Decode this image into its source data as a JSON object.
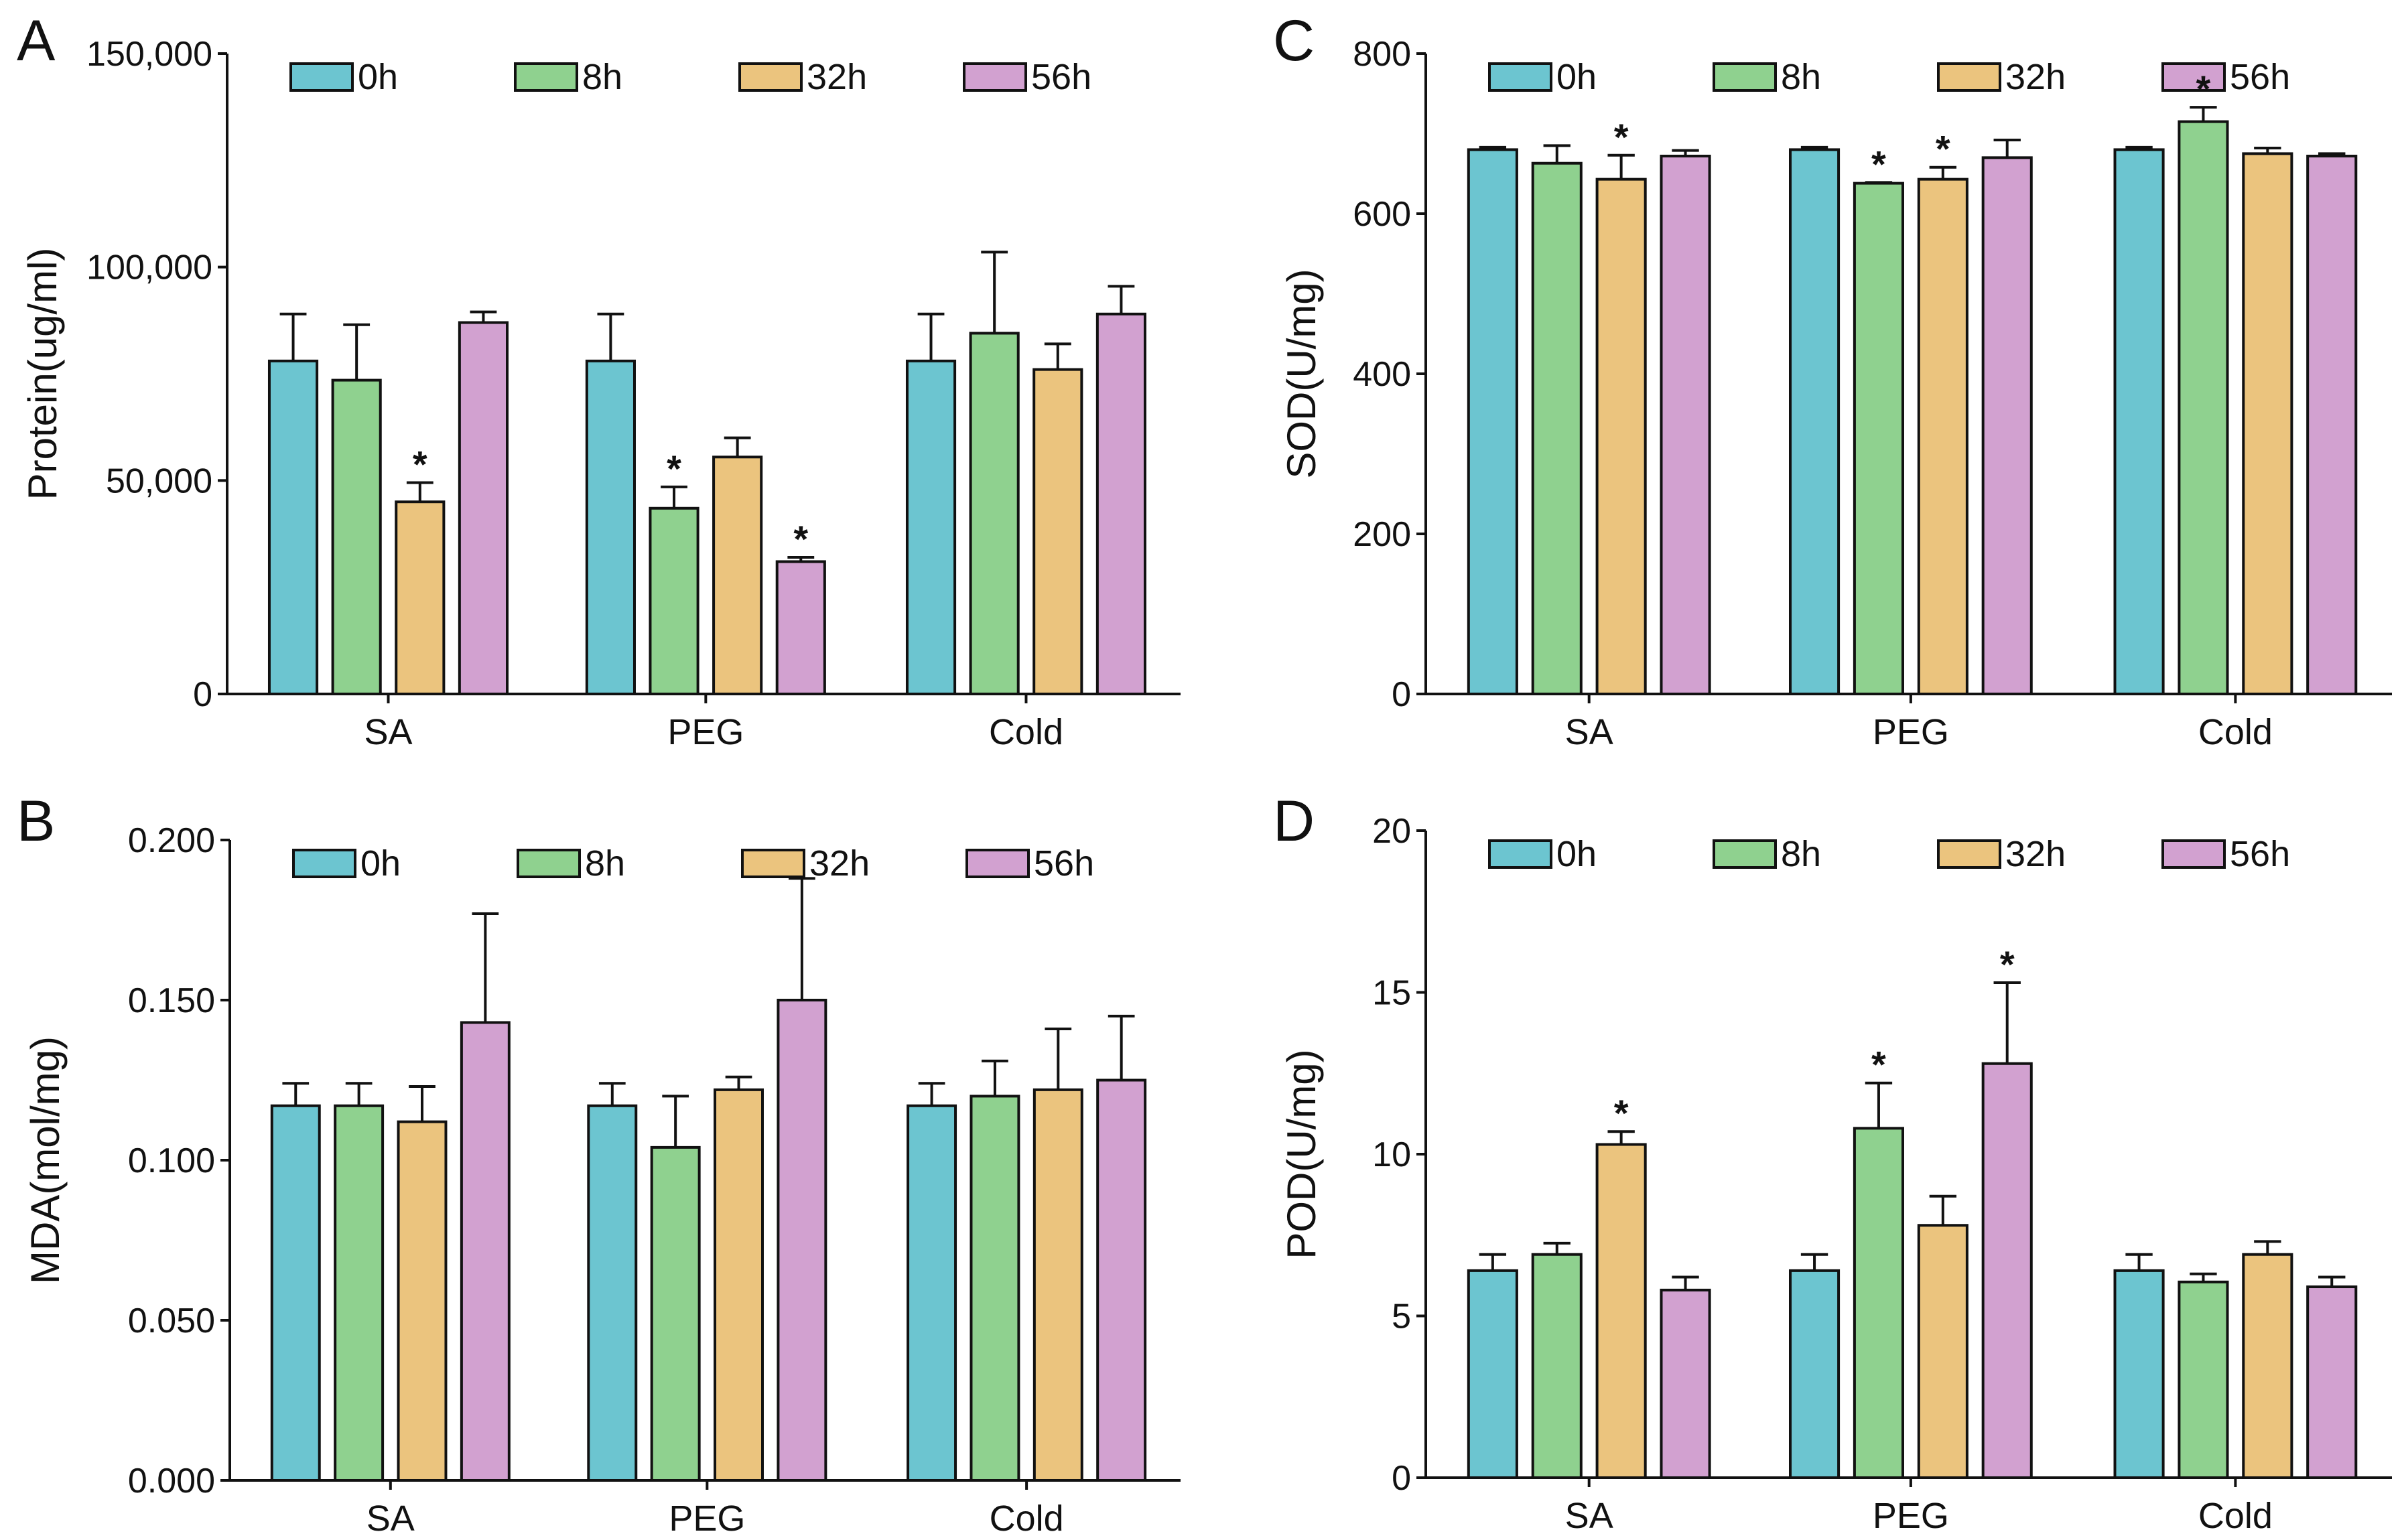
{
  "chart_data": [
    {
      "panel": "A",
      "type": "bar",
      "ylabel": "Protein(ug/ml)",
      "ylim": [
        0,
        150000
      ],
      "yticks": [
        0,
        50000,
        100000,
        150000
      ],
      "ytick_labels": [
        "0",
        "50,000",
        "100,000",
        "150,000"
      ],
      "categories": [
        "SA",
        "PEG",
        "Cold"
      ],
      "legend": "top",
      "series": [
        {
          "name": "0h",
          "values": [
            78000,
            78000,
            78000
          ],
          "errors": [
            11000,
            11000,
            11000
          ],
          "sig": [
            false,
            false,
            false
          ]
        },
        {
          "name": "8h",
          "values": [
            73500,
            43500,
            84500
          ],
          "errors": [
            13000,
            5000,
            19000
          ],
          "sig": [
            false,
            true,
            false
          ]
        },
        {
          "name": "32h",
          "values": [
            45000,
            55500,
            76000
          ],
          "errors": [
            4500,
            4500,
            6000
          ],
          "sig": [
            true,
            false,
            false
          ]
        },
        {
          "name": "56h",
          "values": [
            87000,
            31000,
            89000
          ],
          "errors": [
            2500,
            1000,
            6500
          ],
          "sig": [
            false,
            true,
            false
          ]
        }
      ]
    },
    {
      "panel": "C",
      "type": "bar",
      "ylabel": "SOD(U/mg)",
      "ylim": [
        0,
        800
      ],
      "yticks": [
        0,
        200,
        400,
        600,
        800
      ],
      "ytick_labels": [
        "0",
        "200",
        "400",
        "600",
        "800"
      ],
      "categories": [
        "SA",
        "PEG",
        "Cold"
      ],
      "legend": "top",
      "series": [
        {
          "name": "0h",
          "values": [
            680,
            680,
            680
          ],
          "errors": [
            3,
            3,
            3
          ],
          "sig": [
            false,
            false,
            false
          ]
        },
        {
          "name": "8h",
          "values": [
            663,
            638,
            715
          ],
          "errors": [
            22,
            1,
            18
          ],
          "sig": [
            false,
            true,
            true
          ]
        },
        {
          "name": "32h",
          "values": [
            643,
            643,
            675
          ],
          "errors": [
            30,
            15,
            7
          ],
          "sig": [
            true,
            true,
            false
          ]
        },
        {
          "name": "56h",
          "values": [
            672,
            670,
            672
          ],
          "errors": [
            7,
            22,
            3
          ],
          "sig": [
            false,
            false,
            false
          ]
        }
      ]
    },
    {
      "panel": "B",
      "type": "bar",
      "ylabel": "MDA(mol/mg)",
      "ylim": [
        0,
        0.2
      ],
      "yticks": [
        0,
        0.05,
        0.1,
        0.15,
        0.2
      ],
      "ytick_labels": [
        "0.000",
        "0.050",
        "0.100",
        "0.150",
        "0.200"
      ],
      "categories": [
        "SA",
        "PEG",
        "Cold"
      ],
      "legend": "top",
      "series": [
        {
          "name": "0h",
          "values": [
            0.117,
            0.117,
            0.117
          ],
          "errors": [
            0.007,
            0.007,
            0.007
          ],
          "sig": [
            false,
            false,
            false
          ]
        },
        {
          "name": "8h",
          "values": [
            0.117,
            0.104,
            0.12
          ],
          "errors": [
            0.007,
            0.016,
            0.011
          ],
          "sig": [
            false,
            false,
            false
          ]
        },
        {
          "name": "32h",
          "values": [
            0.112,
            0.122,
            0.122
          ],
          "errors": [
            0.011,
            0.004,
            0.019
          ],
          "sig": [
            false,
            false,
            false
          ]
        },
        {
          "name": "56h",
          "values": [
            0.143,
            0.15,
            0.125
          ],
          "errors": [
            0.034,
            0.038,
            0.02
          ],
          "sig": [
            false,
            false,
            false
          ]
        }
      ]
    },
    {
      "panel": "D",
      "type": "bar",
      "ylabel": "POD(U/mg)",
      "ylim": [
        0,
        20
      ],
      "yticks": [
        0,
        5,
        10,
        15,
        20
      ],
      "ytick_labels": [
        "0",
        "5",
        "10",
        "15",
        "20"
      ],
      "categories": [
        "SA",
        "PEG",
        "Cold"
      ],
      "legend": "top",
      "series": [
        {
          "name": "0h",
          "values": [
            6.4,
            6.4,
            6.4
          ],
          "errors": [
            0.5,
            0.5,
            0.5
          ],
          "sig": [
            false,
            false,
            false
          ]
        },
        {
          "name": "8h",
          "values": [
            6.9,
            10.8,
            6.05
          ],
          "errors": [
            0.35,
            1.4,
            0.25
          ],
          "sig": [
            false,
            true,
            false
          ]
        },
        {
          "name": "32h",
          "values": [
            10.3,
            7.8,
            6.9
          ],
          "errors": [
            0.4,
            0.9,
            0.4
          ],
          "sig": [
            true,
            false,
            false
          ]
        },
        {
          "name": "56h",
          "values": [
            5.8,
            12.8,
            5.9
          ],
          "errors": [
            0.4,
            2.5,
            0.3
          ],
          "sig": [
            false,
            true,
            false
          ]
        }
      ]
    }
  ],
  "significance_marker": "*",
  "colors": [
    "#6cc5d0",
    "#8fd18f",
    "#ebc47e",
    "#d2a1d0"
  ]
}
